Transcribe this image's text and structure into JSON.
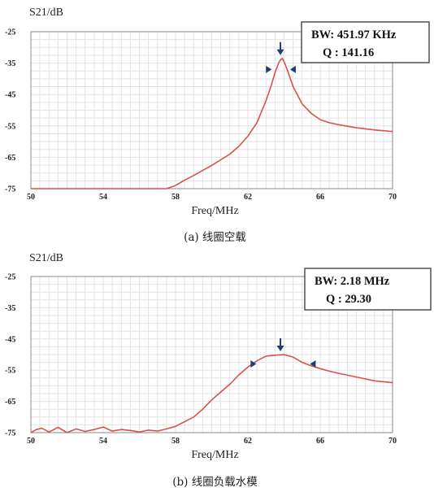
{
  "chart_data": [
    {
      "type": "line",
      "ylabel": "S21/dB",
      "xlabel": "Freq/MHz",
      "caption": "(a) 线圈空载",
      "xlim": [
        50,
        70
      ],
      "ylim": [
        -75,
        -25
      ],
      "xticks": [
        "50",
        "54",
        "58",
        "62",
        "66",
        "70"
      ],
      "yticks": [
        "-25",
        "-35",
        "-45",
        "-55",
        "-65",
        "-75"
      ],
      "grid": true,
      "series": [
        {
          "color": "#d8534c",
          "x": [
            50,
            52,
            54,
            56,
            57.5,
            58.0,
            58.5,
            59.0,
            59.5,
            60.0,
            60.5,
            61.0,
            61.5,
            62.0,
            62.5,
            63.0,
            63.3,
            63.5,
            63.7,
            63.8,
            63.9,
            64.0,
            64.2,
            64.5,
            65.0,
            65.5,
            66.0,
            66.5,
            67.0,
            68.0,
            69.0,
            70.0
          ],
          "y": [
            -75,
            -75,
            -75,
            -75,
            -75,
            -74.0,
            -72.3,
            -70.8,
            -69.2,
            -67.6,
            -65.8,
            -64.0,
            -61.5,
            -58.3,
            -54.0,
            -47.0,
            -42.0,
            -38.0,
            -35.0,
            -34.0,
            -33.5,
            -34.5,
            -37.5,
            -42.5,
            -48.0,
            -51.0,
            -53.0,
            -54.0,
            -54.6,
            -55.6,
            -56.3,
            -56.8
          ]
        }
      ],
      "annotation": {
        "bw": "BW:  451.97 KHz",
        "q": "Q  :  141.16"
      },
      "markers": {
        "peak_x": 63.8,
        "left_x": 63.45,
        "right_x": 64.2,
        "level_y": -37.0
      }
    },
    {
      "type": "line",
      "ylabel": "S21/dB",
      "xlabel": "Freq/MHz",
      "caption": "(b) 线圈负载水模",
      "xlim": [
        50,
        70
      ],
      "ylim": [
        -75,
        -25
      ],
      "xticks": [
        "50",
        "54",
        "58",
        "62",
        "66",
        "70"
      ],
      "yticks": [
        "-25",
        "-35",
        "-45",
        "-55",
        "-65",
        "-75"
      ],
      "grid": true,
      "series": [
        {
          "color": "#d8534c",
          "x": [
            50.0,
            50.3,
            50.6,
            51.0,
            51.5,
            52.0,
            52.5,
            53.0,
            53.5,
            54.0,
            54.5,
            55.0,
            55.5,
            56.0,
            56.5,
            57.0,
            57.5,
            58.0,
            58.5,
            59.0,
            59.5,
            60.0,
            60.5,
            61.0,
            61.5,
            62.0,
            62.5,
            63.0,
            63.5,
            64.0,
            64.5,
            65.0,
            65.5,
            66.0,
            66.5,
            67.0,
            68.0,
            69.0,
            70.0
          ],
          "y": [
            -75,
            -74.0,
            -73.6,
            -74.8,
            -73.3,
            -75.0,
            -73.8,
            -74.6,
            -74.0,
            -73.2,
            -74.5,
            -74.0,
            -74.3,
            -74.8,
            -74.2,
            -74.5,
            -73.8,
            -73.0,
            -71.5,
            -70.0,
            -67.5,
            -64.5,
            -62.0,
            -59.5,
            -56.5,
            -54.0,
            -52.0,
            -50.5,
            -50.2,
            -50.0,
            -50.8,
            -52.5,
            -53.6,
            -54.5,
            -55.3,
            -56.0,
            -57.2,
            -58.4,
            -59.0
          ]
        }
      ],
      "annotation": {
        "bw": "BW:  2.18 MHz",
        "q": "Q  :  29.30"
      },
      "markers": {
        "peak_x": 63.8,
        "left_x": 62.6,
        "right_x": 65.3,
        "level_y": -53.0
      }
    }
  ]
}
